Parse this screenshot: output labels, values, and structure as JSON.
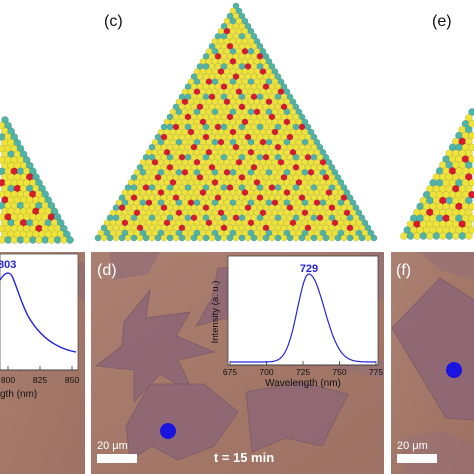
{
  "panels": {
    "c_label": "(c)",
    "e_label": "(e)",
    "d_label": "(d)",
    "f_label": "(f)"
  },
  "left_fragment": {
    "peak_partial": "803",
    "x_ticks": [
      "800",
      "825",
      "850"
    ],
    "xlabel_partial": "gth (nm)"
  },
  "inset_d": {
    "peak": "729",
    "ylabel": "Intensity (a. u.)",
    "xlabel": "Wavelength (nm)",
    "x_ticks": [
      "675",
      "700",
      "725",
      "750",
      "775"
    ]
  },
  "panel_d": {
    "scalebar": "20 μm",
    "time": "t = 15 min"
  },
  "panel_f": {
    "scalebar": "20 μm"
  },
  "colors": {
    "tellurium_atom": "#ede33b",
    "metal_atom": "#4fb3a6",
    "vacancy_atom": "#d81b2c",
    "substrate": "#a87a6c",
    "flake": "#8e6776",
    "spectrum": "#2626d9",
    "marker": "#1a14e0"
  }
}
